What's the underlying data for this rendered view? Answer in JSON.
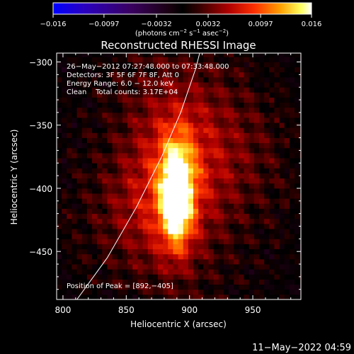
{
  "colorbar": {
    "ticks": [
      "−0.016",
      "−0.0097",
      "−0.0032",
      "0.0032",
      "0.0097",
      "0.016"
    ],
    "tick_values": [
      -0.016,
      -0.0097,
      -0.0032,
      0.0032,
      0.0097,
      0.016
    ],
    "range": [
      -0.016,
      0.016
    ],
    "unit_label": "(photons cm",
    "unit_sup1": "−2",
    "unit_mid": " s",
    "unit_sup2": "−1",
    "unit_end": " asec",
    "unit_sup3": "−2",
    "unit_close": ")"
  },
  "chart_data": {
    "type": "heatmap",
    "title": "Reconstructed RHESSI Image",
    "xlabel": "Heliocentric X (arcsec)",
    "ylabel": "Heliocentric Y (arcsec)",
    "xlim": [
      795,
      988
    ],
    "ylim": [
      -488,
      -293
    ],
    "xticks": [
      800,
      850,
      900,
      950
    ],
    "xtick_labels": [
      "800",
      "850",
      "900",
      "950"
    ],
    "yticks": [
      -300,
      -350,
      -400,
      -450
    ],
    "ytick_labels": [
      "−300",
      "−350",
      "−400",
      "−450"
    ],
    "peak": [
      892,
      -405
    ],
    "annotations": [
      "26−May−2012 07:27:48.000 to 07:33:48.000",
      "Detectors: 3F 5F 6F 7F 8F, Att 0",
      "Energy Range: 6.0 − 12.0 keV",
      "Clean    Total counts: 3.17E+04"
    ],
    "peak_label": "Position of Peak = [892,−405]",
    "sources": [
      {
        "x": 890,
        "y": -405,
        "sx": 9,
        "sy": 28,
        "amp": 0.016
      },
      {
        "x": 886,
        "y": -385,
        "sx": 28,
        "sy": 55,
        "amp": 0.006
      },
      {
        "x": 925,
        "y": -370,
        "sx": 35,
        "sy": 40,
        "amp": 0.003
      },
      {
        "x": 860,
        "y": -420,
        "sx": 30,
        "sy": 30,
        "amp": 0.0025
      }
    ],
    "limb_curve": [
      [
        811,
        -488
      ],
      [
        835,
        -455
      ],
      [
        858,
        -415
      ],
      [
        878,
        -375
      ],
      [
        893,
        -340
      ],
      [
        905,
        -305
      ],
      [
        908,
        -293
      ]
    ]
  },
  "timestamp": "11−May−2022 04:59",
  "colors": {
    "frame": "#ffffff",
    "background": "#000000"
  }
}
